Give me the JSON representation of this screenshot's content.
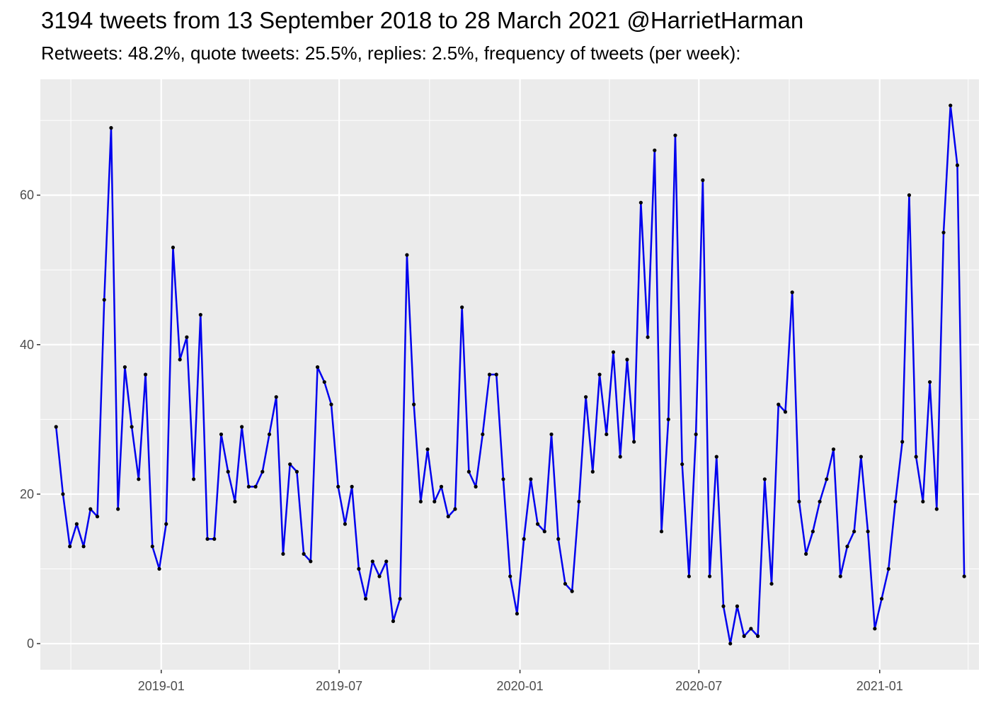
{
  "title": "3194 tweets from 13 September 2018 to 28 March 2021 @HarrietHarman",
  "subtitle": "Retweets: 48.2%, quote tweets: 25.5%, replies: 2.5%, frequency of tweets (per week):",
  "chart_data": {
    "type": "line",
    "title": "3194 tweets from 13 September 2018 to 28 March 2021 @HarrietHarman",
    "subtitle": "Retweets: 48.2%, quote tweets: 25.5%, replies: 2.5%, frequency of tweets (per week):",
    "xlabel": "",
    "ylabel": "",
    "x_type": "date",
    "xlim": [
      "2018-08-31",
      "2021-04-12"
    ],
    "ylim": [
      -3.5,
      75.5
    ],
    "x_ticks": [
      {
        "date": "2019-01-01",
        "label": "2019-01"
      },
      {
        "date": "2019-07-01",
        "label": "2019-07"
      },
      {
        "date": "2020-01-01",
        "label": "2020-01"
      },
      {
        "date": "2020-07-01",
        "label": "2020-07"
      },
      {
        "date": "2021-01-01",
        "label": "2021-01"
      }
    ],
    "x_minor_ticks": [
      "2018-10-01",
      "2019-04-01",
      "2019-10-01",
      "2020-04-01",
      "2020-10-01",
      "2021-04-01"
    ],
    "y_ticks": [
      0,
      20,
      40,
      60
    ],
    "y_minor_ticks": [
      10,
      30,
      50,
      70
    ],
    "grid": true,
    "panel_background": "#ebebeb",
    "grid_color": "#ffffff",
    "line_color": "#0000ee",
    "point_color": "#000000",
    "series": [
      {
        "x": [
          "2018-09-16",
          "2018-09-23",
          "2018-09-30",
          "2018-10-07",
          "2018-10-14",
          "2018-10-21",
          "2018-10-28",
          "2018-11-04",
          "2018-11-11",
          "2018-11-18",
          "2018-11-25",
          "2018-12-02",
          "2018-12-09",
          "2018-12-16",
          "2018-12-23",
          "2018-12-30",
          "2019-01-06",
          "2019-01-13",
          "2019-01-20",
          "2019-01-27",
          "2019-02-03",
          "2019-02-10",
          "2019-02-17",
          "2019-02-24",
          "2019-03-03",
          "2019-03-10",
          "2019-03-17",
          "2019-03-24",
          "2019-03-31",
          "2019-04-07",
          "2019-04-14",
          "2019-04-21",
          "2019-04-28",
          "2019-05-05",
          "2019-05-12",
          "2019-05-19",
          "2019-05-26",
          "2019-06-02",
          "2019-06-09",
          "2019-06-16",
          "2019-06-23",
          "2019-06-30",
          "2019-07-07",
          "2019-07-14",
          "2019-07-21",
          "2019-07-28",
          "2019-08-04",
          "2019-08-11",
          "2019-08-18",
          "2019-08-25",
          "2019-09-01",
          "2019-09-08",
          "2019-09-15",
          "2019-09-22",
          "2019-09-29",
          "2019-10-06",
          "2019-10-13",
          "2019-10-20",
          "2019-10-27",
          "2019-11-03",
          "2019-11-10",
          "2019-11-17",
          "2019-11-24",
          "2019-12-01",
          "2019-12-08",
          "2019-12-15",
          "2019-12-22",
          "2019-12-29",
          "2020-01-05",
          "2020-01-12",
          "2020-01-19",
          "2020-01-26",
          "2020-02-02",
          "2020-02-09",
          "2020-02-16",
          "2020-02-23",
          "2020-03-01",
          "2020-03-08",
          "2020-03-15",
          "2020-03-22",
          "2020-03-29",
          "2020-04-05",
          "2020-04-12",
          "2020-04-19",
          "2020-04-26",
          "2020-05-03",
          "2020-05-10",
          "2020-05-17",
          "2020-05-24",
          "2020-05-31",
          "2020-06-07",
          "2020-06-14",
          "2020-06-21",
          "2020-06-28",
          "2020-07-05",
          "2020-07-12",
          "2020-07-19",
          "2020-07-26",
          "2020-08-02",
          "2020-08-09",
          "2020-08-16",
          "2020-08-23",
          "2020-08-30",
          "2020-09-06",
          "2020-09-13",
          "2020-09-20",
          "2020-09-27",
          "2020-10-04",
          "2020-10-11",
          "2020-10-18",
          "2020-10-25",
          "2020-11-01",
          "2020-11-08",
          "2020-11-15",
          "2020-11-22",
          "2020-11-29",
          "2020-12-06",
          "2020-12-13",
          "2020-12-20",
          "2020-12-27",
          "2021-01-03",
          "2021-01-10",
          "2021-01-17",
          "2021-01-24",
          "2021-01-31",
          "2021-02-07",
          "2021-02-14",
          "2021-02-21",
          "2021-02-28",
          "2021-03-07",
          "2021-03-14",
          "2021-03-21",
          "2021-03-28"
        ],
        "y": [
          29,
          20,
          13,
          16,
          13,
          18,
          17,
          46,
          69,
          18,
          37,
          29,
          22,
          36,
          13,
          10,
          16,
          53,
          38,
          41,
          22,
          44,
          14,
          14,
          28,
          23,
          19,
          29,
          21,
          21,
          23,
          28,
          33,
          12,
          24,
          23,
          12,
          11,
          37,
          35,
          32,
          21,
          16,
          21,
          10,
          6,
          11,
          9,
          11,
          3,
          6,
          52,
          32,
          19,
          26,
          19,
          21,
          17,
          18,
          45,
          23,
          21,
          28,
          36,
          36,
          22,
          9,
          4,
          14,
          22,
          16,
          15,
          28,
          14,
          8,
          7,
          19,
          33,
          23,
          36,
          28,
          39,
          25,
          38,
          27,
          59,
          41,
          66,
          15,
          30,
          68,
          24,
          9,
          28,
          62,
          9,
          25,
          5,
          0,
          5,
          1,
          2,
          1,
          22,
          8,
          32,
          31,
          47,
          19,
          12,
          15,
          19,
          22,
          26,
          9,
          13,
          15,
          25,
          15,
          2,
          6,
          10,
          19,
          27,
          60,
          25,
          19,
          35,
          18,
          55,
          72,
          64,
          9
        ]
      }
    ]
  }
}
